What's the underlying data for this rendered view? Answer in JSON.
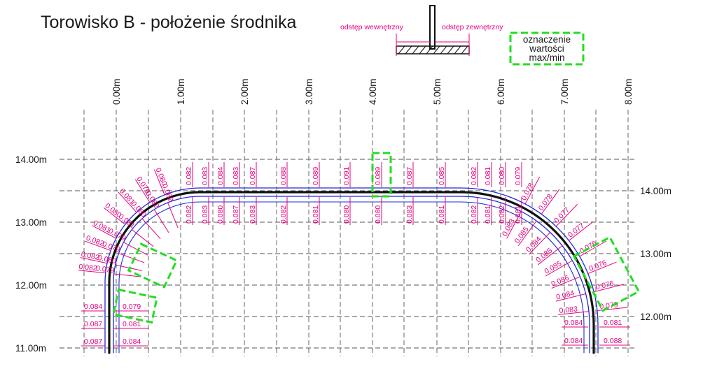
{
  "title": "Torowisko B - położenie środnika",
  "legend": {
    "inner_label": "odstęp wewnętrzny",
    "outer_label": "odstęp zewnętrzny",
    "box_lines": [
      "oznaczenie",
      "wartości",
      "max/min"
    ]
  },
  "axes": {
    "x_ticks": [
      "0.00m",
      "1.00m",
      "2.00m",
      "3.00m",
      "4.00m",
      "5.00m",
      "6.00m",
      "7.00m",
      "8.00m"
    ],
    "y_left_ticks": [
      "14.00m",
      "13.00m",
      "12.00m",
      "11.00m"
    ],
    "y_right_ticks": [
      "14.00m",
      "13.00m",
      "12.00m"
    ]
  },
  "measurements": {
    "top": {
      "outer": [
        "0.082",
        "0.083",
        "0.084",
        "0.083",
        "0.087",
        "0.088",
        "0.089",
        "0.091",
        "0.089",
        "0.087",
        "0.085",
        "0.082",
        "0.081",
        "0.080",
        "0.079"
      ],
      "inner": [
        "0.082",
        "0.083",
        "0.080",
        "0.087",
        "0.083",
        "0.082",
        "0.081",
        "0.080",
        "0.080",
        "0.083",
        "0.081",
        "0.082",
        "0.081",
        "0.082",
        "0.081"
      ]
    },
    "left": {
      "outer": [
        "0.080",
        "0.079",
        "0.081",
        "0.080",
        "0.081",
        "0.082",
        "0.082",
        "0.082",
        "0.084",
        "0.087",
        "0.087"
      ],
      "inner": [
        "0.082",
        "0.082",
        "0.080",
        "0.081",
        "0.079",
        "0.079",
        "0.080",
        "0.079",
        "0.079",
        "0.081",
        "0.084"
      ]
    },
    "right": {
      "outer": [
        "0.078",
        "0.078",
        "0.077",
        "0.077",
        "0.076",
        "0.076",
        "0.076",
        "0.079",
        "0.081",
        "0.088"
      ],
      "inner": [
        "0.083",
        "0.085",
        "0.084",
        "0.085",
        "0.085",
        "0.086",
        "0.084",
        "0.083",
        "0.084",
        "0.084"
      ]
    }
  },
  "highlights": [
    "top-0.091/0.080",
    "left-0.079/0.079 (upper)",
    "left-0.079/0.079 (lower)",
    "right-0.076 group"
  ],
  "colors": {
    "measure": "#e6007e",
    "rail_outer": "#1f2bd6",
    "rail_web": "#111111",
    "highlight": "#22dd22",
    "grid": "#555555"
  }
}
